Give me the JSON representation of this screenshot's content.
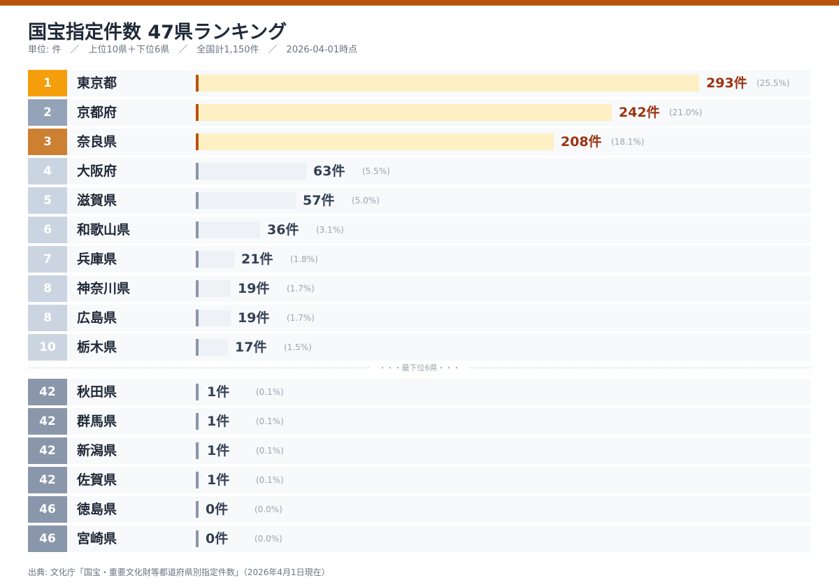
{
  "header": {
    "title": "国宝指定件数 47県ランキング",
    "subtitle": "単位: 件　／　上位10県＋下位6県　／　全国計1,150件　／　2026-04-01時点"
  },
  "separator_label": "・・・最下位6県・・・",
  "source": "出典: 文化庁「国宝・重要文化財等都道府県別指定件数」（2026年4月1日現在）",
  "colors": {
    "gold": "#f59e0b",
    "silver": "#94a3b8",
    "bronze": "#cd7f32",
    "rank_light": "#cbd5e1",
    "rank_bottom": "#8a96aa",
    "top_bar_fill": "#fdf0c4",
    "top_tick": "#b8530d",
    "top_value": "#9a3412",
    "other_bar_fill": "#eef2f7",
    "other_tick": "#8a96aa",
    "other_value": "#334155"
  },
  "chart_data": {
    "type": "bar",
    "orientation": "horizontal",
    "unit": "件",
    "xlim": [
      0,
      293
    ],
    "rows": [
      {
        "rank": "1",
        "name": "東京都",
        "value": 293,
        "label": "293件",
        "pct": "(25.5%)",
        "group": "top"
      },
      {
        "rank": "2",
        "name": "京都府",
        "value": 242,
        "label": "242件",
        "pct": "(21.0%)",
        "group": "top"
      },
      {
        "rank": "3",
        "name": "奈良県",
        "value": 208,
        "label": "208件",
        "pct": "(18.1%)",
        "group": "top"
      },
      {
        "rank": "4",
        "name": "大阪府",
        "value": 63,
        "label": "63件",
        "pct": "(5.5%)",
        "group": "upper"
      },
      {
        "rank": "5",
        "name": "滋賀県",
        "value": 57,
        "label": "57件",
        "pct": "(5.0%)",
        "group": "upper"
      },
      {
        "rank": "6",
        "name": "和歌山県",
        "value": 36,
        "label": "36件",
        "pct": "(3.1%)",
        "group": "upper"
      },
      {
        "rank": "7",
        "name": "兵庫県",
        "value": 21,
        "label": "21件",
        "pct": "(1.8%)",
        "group": "upper"
      },
      {
        "rank": "8",
        "name": "神奈川県",
        "value": 19,
        "label": "19件",
        "pct": "(1.7%)",
        "group": "upper"
      },
      {
        "rank": "8",
        "name": "広島県",
        "value": 19,
        "label": "19件",
        "pct": "(1.7%)",
        "group": "upper"
      },
      {
        "rank": "10",
        "name": "栃木県",
        "value": 17,
        "label": "17件",
        "pct": "(1.5%)",
        "group": "upper"
      },
      {
        "rank": "42",
        "name": "秋田県",
        "value": 1,
        "label": "1件",
        "pct": "(0.1%)",
        "group": "bottom"
      },
      {
        "rank": "42",
        "name": "群馬県",
        "value": 1,
        "label": "1件",
        "pct": "(0.1%)",
        "group": "bottom"
      },
      {
        "rank": "42",
        "name": "新潟県",
        "value": 1,
        "label": "1件",
        "pct": "(0.1%)",
        "group": "bottom"
      },
      {
        "rank": "42",
        "name": "佐賀県",
        "value": 1,
        "label": "1件",
        "pct": "(0.1%)",
        "group": "bottom"
      },
      {
        "rank": "46",
        "name": "徳島県",
        "value": 0,
        "label": "0件",
        "pct": "(0.0%)",
        "group": "bottom"
      },
      {
        "rank": "46",
        "name": "宮崎県",
        "value": 0,
        "label": "0件",
        "pct": "(0.0%)",
        "group": "bottom"
      }
    ]
  }
}
